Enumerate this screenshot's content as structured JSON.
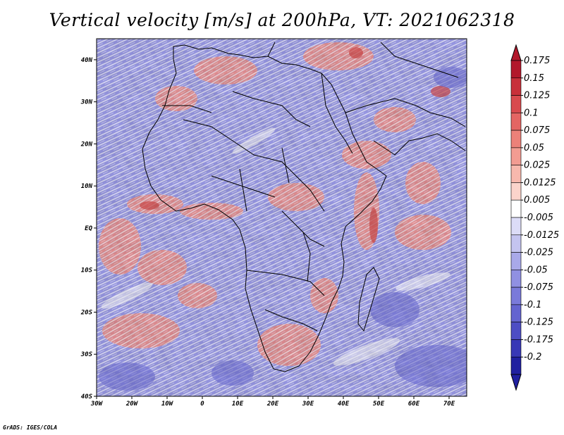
{
  "title": "Vertical velocity [m/s] at 200hPa, VT: 2021062318",
  "footer": "GrADS: IGES/COLA",
  "map": {
    "lat_labels": [
      {
        "lat": 40,
        "text": "40N"
      },
      {
        "lat": 30,
        "text": "30N"
      },
      {
        "lat": 20,
        "text": "20N"
      },
      {
        "lat": 10,
        "text": "10N"
      },
      {
        "lat": 0,
        "text": "EQ"
      },
      {
        "lat": -10,
        "text": "10S"
      },
      {
        "lat": -20,
        "text": "20S"
      },
      {
        "lat": -30,
        "text": "30S"
      },
      {
        "lat": -40,
        "text": "40S"
      }
    ],
    "lon_labels": [
      {
        "lon": -30,
        "text": "30W"
      },
      {
        "lon": -20,
        "text": "20W"
      },
      {
        "lon": -10,
        "text": "10W"
      },
      {
        "lon": 0,
        "text": "0"
      },
      {
        "lon": 10,
        "text": "10E"
      },
      {
        "lon": 20,
        "text": "20E"
      },
      {
        "lon": 30,
        "text": "30E"
      },
      {
        "lon": 40,
        "text": "40E"
      },
      {
        "lon": 50,
        "text": "50E"
      },
      {
        "lon": 60,
        "text": "60E"
      },
      {
        "lon": 70,
        "text": "70E"
      }
    ],
    "lon_range": [
      -30,
      75
    ],
    "lat_range": [
      -40,
      45
    ]
  },
  "colorbar": {
    "labels": [
      "0.175",
      "0.15",
      "0.125",
      "0.1",
      "0.075",
      "0.05",
      "0.025",
      "0.0125",
      "0.005",
      "-0.005",
      "-0.0125",
      "-0.025",
      "-0.05",
      "-0.075",
      "-0.1",
      "-0.125",
      "-0.175",
      "-0.2"
    ],
    "colors": [
      "#b2182b",
      "#c8303a",
      "#d84a4e",
      "#e46563",
      "#ec8179",
      "#f29c92",
      "#f7b8ad",
      "#fbd4cb",
      "#ffffff",
      "#dcdcf7",
      "#c4c4f0",
      "#a9a9e9",
      "#9090e2",
      "#7a7ada",
      "#6464d0",
      "#4d4dc4",
      "#3838b6",
      "#2020a0"
    ]
  }
}
